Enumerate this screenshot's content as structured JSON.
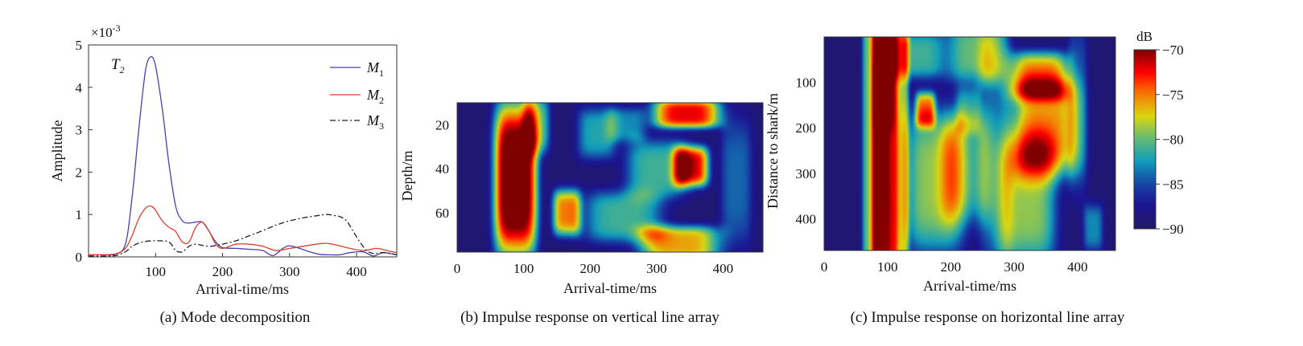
{
  "figure": {
    "captions": {
      "a": "(a) Mode decomposition",
      "b": "(b) Impulse response on vertical line array",
      "c": "(c) Impulse response on horizontal line array"
    }
  },
  "chart_data": [
    {
      "type": "line",
      "panel": "a",
      "annotation": "T",
      "annotation_sub": "2",
      "multiplier": "×10",
      "multiplier_exp": "-3",
      "xlabel": "Arrival-time/ms",
      "ylabel": "Amplitude",
      "xlim": [
        0,
        460
      ],
      "ylim": [
        0,
        5
      ],
      "x_ticks": [
        100,
        200,
        300,
        400
      ],
      "y_ticks": [
        0,
        1,
        2,
        3,
        4,
        5
      ],
      "legend_position": "top-right",
      "series": [
        {
          "name": "M",
          "sub": "1",
          "color": "#4a3fb0",
          "dash": "solid",
          "x": [
            0,
            20,
            40,
            55,
            65,
            75,
            85,
            93,
            100,
            110,
            120,
            130,
            140,
            150,
            160,
            170,
            180,
            190,
            200,
            220,
            240,
            260,
            275,
            290,
            300,
            315,
            330,
            345,
            360,
            375,
            390,
            410,
            425,
            440,
            460
          ],
          "y": [
            0.05,
            0.05,
            0.06,
            0.3,
            1.4,
            3.0,
            4.4,
            4.72,
            4.5,
            3.5,
            2.2,
            1.2,
            0.85,
            0.8,
            0.82,
            0.82,
            0.6,
            0.35,
            0.22,
            0.2,
            0.18,
            0.15,
            0.03,
            0.2,
            0.26,
            0.2,
            0.12,
            0.06,
            0.05,
            0.05,
            0.1,
            0.12,
            0.02,
            0.1,
            0.05
          ]
        },
        {
          "name": "M",
          "sub": "2",
          "color": "#d8412c",
          "dash": "solid",
          "x": [
            0,
            20,
            40,
            55,
            65,
            75,
            85,
            93,
            100,
            110,
            120,
            130,
            140,
            150,
            160,
            170,
            180,
            190,
            200,
            220,
            240,
            260,
            280,
            300,
            320,
            340,
            355,
            370,
            390,
            410,
            430,
            445,
            460
          ],
          "y": [
            0.05,
            0.05,
            0.07,
            0.2,
            0.5,
            0.9,
            1.15,
            1.2,
            1.1,
            0.85,
            0.7,
            0.6,
            0.35,
            0.35,
            0.7,
            0.82,
            0.6,
            0.3,
            0.2,
            0.3,
            0.3,
            0.25,
            0.15,
            0.2,
            0.25,
            0.3,
            0.32,
            0.28,
            0.2,
            0.15,
            0.2,
            0.15,
            0.1
          ]
        },
        {
          "name": "M",
          "sub": "3",
          "color": "#222222",
          "dash": "dashdot",
          "x": [
            0,
            20,
            40,
            55,
            65,
            80,
            100,
            120,
            130,
            140,
            150,
            160,
            180,
            200,
            220,
            240,
            260,
            280,
            300,
            320,
            340,
            355,
            365,
            375,
            385,
            395,
            405,
            415,
            425,
            440,
            460
          ],
          "y": [
            0.02,
            0.02,
            0.03,
            0.12,
            0.25,
            0.35,
            0.38,
            0.35,
            0.15,
            0.12,
            0.25,
            0.3,
            0.25,
            0.3,
            0.38,
            0.5,
            0.62,
            0.75,
            0.85,
            0.92,
            0.97,
            1.0,
            0.98,
            0.95,
            0.85,
            0.6,
            0.35,
            0.15,
            0.08,
            0.1,
            0.05
          ]
        }
      ]
    },
    {
      "type": "heatmap",
      "panel": "b",
      "xlabel": "Arrival-time/ms",
      "ylabel": "Depth/m",
      "xlim": [
        0,
        460
      ],
      "ylim": [
        10,
        78
      ],
      "y_reversed": true,
      "x_ticks": [
        0,
        100,
        200,
        300,
        400
      ],
      "y_ticks": [
        20,
        40,
        60
      ],
      "colormap": "jet",
      "value_range_db": [
        -90,
        -70
      ],
      "blobs": [
        {
          "t": 88,
          "d": 45,
          "st": 24,
          "sd": 26,
          "amp": 22
        },
        {
          "t": 165,
          "d": 60,
          "st": 16,
          "sd": 8,
          "amp": 14
        },
        {
          "t": 120,
          "d": 20,
          "st": 15,
          "sd": 10,
          "amp": 8
        },
        {
          "t": 345,
          "d": 15,
          "st": 38,
          "sd": 5,
          "amp": 17
        },
        {
          "t": 352,
          "d": 39,
          "st": 20,
          "sd": 7,
          "amp": 17
        },
        {
          "t": 335,
          "d": 74,
          "st": 45,
          "sd": 6,
          "amp": 13
        },
        {
          "t": 300,
          "d": 40,
          "st": 35,
          "sd": 10,
          "amp": 8
        },
        {
          "t": 250,
          "d": 62,
          "st": 45,
          "sd": 9,
          "amp": 8
        },
        {
          "t": 210,
          "d": 24,
          "st": 22,
          "sd": 9,
          "amp": 7
        },
        {
          "t": 255,
          "d": 20,
          "st": 22,
          "sd": 6,
          "amp": 6
        },
        {
          "t": 420,
          "d": 46,
          "st": 18,
          "sd": 22,
          "amp": 5
        }
      ]
    },
    {
      "type": "heatmap",
      "panel": "c",
      "xlabel": "Arrival-time/ms",
      "ylabel": "Distance to shark/m",
      "xlim": [
        0,
        460
      ],
      "ylim": [
        0,
        470
      ],
      "y_reversed": true,
      "x_ticks": [
        0,
        100,
        200,
        300,
        400
      ],
      "y_ticks": [
        100,
        200,
        300,
        400
      ],
      "colormap": "jet",
      "value_range_db": [
        -90,
        -70
      ],
      "colorbar": {
        "title": "dB",
        "ticks": [
          -70,
          -75,
          -80,
          -85,
          -90
        ],
        "tick_labels": [
          "−70",
          "−75",
          "−80",
          "−85",
          "−90"
        ]
      },
      "blobs": [
        {
          "t": 95,
          "d": 230,
          "st": 14,
          "sd": 500,
          "amp": 19
        },
        {
          "t": 95,
          "d": 120,
          "st": 12,
          "sd": 60,
          "amp": 4
        },
        {
          "t": 72,
          "d": 230,
          "st": 9,
          "sd": 500,
          "amp": 9
        },
        {
          "t": 122,
          "d": 230,
          "st": 9,
          "sd": 500,
          "amp": 10
        },
        {
          "t": 160,
          "d": 160,
          "st": 12,
          "sd": 30,
          "amp": 12
        },
        {
          "t": 175,
          "d": 320,
          "st": 35,
          "sd": 120,
          "amp": 10
        },
        {
          "t": 150,
          "d": 40,
          "st": 30,
          "sd": 40,
          "amp": 8
        },
        {
          "t": 240,
          "d": 35,
          "st": 35,
          "sd": 50,
          "amp": 9
        },
        {
          "t": 228,
          "d": 160,
          "st": 15,
          "sd": 40,
          "amp": 6
        },
        {
          "t": 225,
          "d": 290,
          "st": 30,
          "sd": 90,
          "amp": 7
        },
        {
          "t": 340,
          "d": 85,
          "st": 35,
          "sd": 40,
          "amp": 13
        },
        {
          "t": 350,
          "d": 200,
          "st": 40,
          "sd": 80,
          "amp": 13
        },
        {
          "t": 320,
          "d": 360,
          "st": 35,
          "sd": 110,
          "amp": 10
        },
        {
          "t": 270,
          "d": 250,
          "st": 20,
          "sd": 200,
          "amp": 5
        },
        {
          "t": 400,
          "d": 150,
          "st": 12,
          "sd": 150,
          "amp": 4
        },
        {
          "t": 425,
          "d": 420,
          "st": 12,
          "sd": 40,
          "amp": 6
        }
      ]
    }
  ]
}
